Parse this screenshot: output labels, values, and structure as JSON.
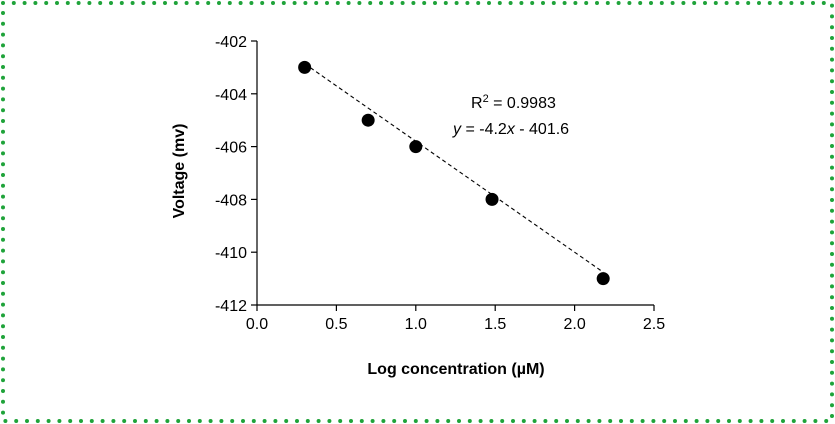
{
  "colors": {
    "border": "#1fa33a",
    "marker": "#000000",
    "fit_line": "#000000"
  },
  "chart_data": {
    "type": "scatter",
    "title": "",
    "xlabel": "Log concentration (µM)",
    "ylabel": "Voltage (mv)",
    "xlim": [
      0,
      2.5
    ],
    "ylim": [
      -412,
      -402
    ],
    "x_ticks": [
      0.0,
      0.5,
      1.0,
      1.5,
      2.0,
      2.5
    ],
    "x_tick_labels": [
      "0.0",
      "0.5",
      "1.0",
      "1.5",
      "2.0",
      "2.5"
    ],
    "y_ticks": [
      -402,
      -404,
      -406,
      -408,
      -410,
      -412
    ],
    "y_tick_labels": [
      "-402",
      "-404",
      "-406",
      "-408",
      "-410",
      "-412"
    ],
    "grid": false,
    "series": [
      {
        "x": [
          0.3,
          0.7,
          1.0,
          1.48,
          2.18
        ],
        "y": [
          -403,
          -405,
          -406,
          -408,
          -411
        ]
      }
    ],
    "fit": {
      "slope": -4.2,
      "intercept": -401.6,
      "style": "dashed"
    },
    "annotations": {
      "r2_prefix": "R",
      "r2_sup": "2",
      "r2_rest": " = 0.9983",
      "eq_y": "y",
      "eq_mid": " = -4.2",
      "eq_x": "x",
      "eq_rest": " - 401.6"
    }
  }
}
